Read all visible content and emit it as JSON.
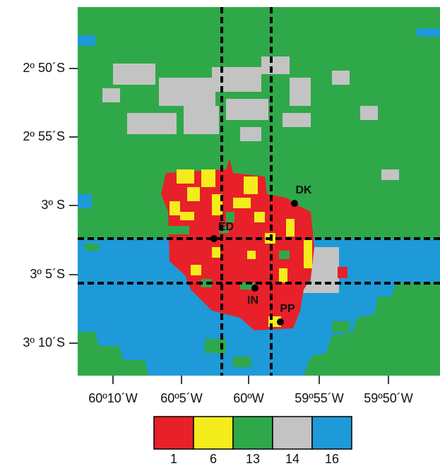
{
  "y_axis": {
    "ticks": [
      "2º 50´S",
      "2º 55´S",
      "3º S",
      "3º 5´S",
      "3º 10´S"
    ]
  },
  "x_axis": {
    "ticks": [
      "60º10´W",
      "60º5´W",
      "60ºW",
      "59º55´W",
      "59º50´W"
    ]
  },
  "sites": [
    {
      "label": "DK"
    },
    {
      "label": "ED"
    },
    {
      "label": "IN"
    },
    {
      "label": "PP"
    }
  ],
  "legend": {
    "items": [
      {
        "label": "1",
        "color": "#e8202a"
      },
      {
        "label": "6",
        "color": "#f4ec1c"
      },
      {
        "label": "13",
        "color": "#2fa84a"
      },
      {
        "label": "14",
        "color": "#c3c3c3"
      },
      {
        "label": "16",
        "color": "#1e9ad8"
      }
    ]
  }
}
